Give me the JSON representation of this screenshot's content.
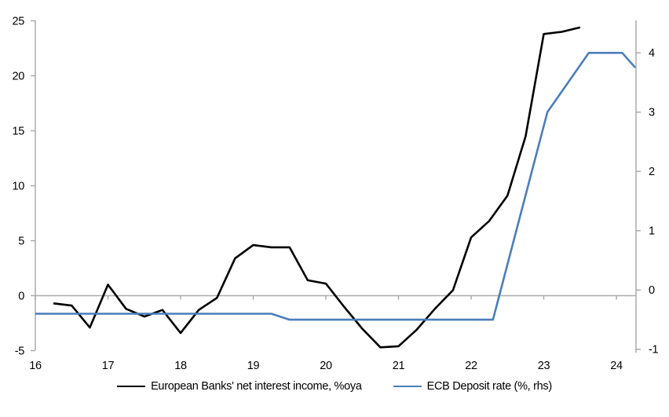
{
  "chart_data": {
    "type": "line",
    "title": "",
    "x_axis": {
      "ticks": [
        16,
        17,
        18,
        19,
        20,
        21,
        22,
        23,
        24
      ],
      "range": [
        16,
        24.27
      ],
      "label": ""
    },
    "left_axis": {
      "ticks": [
        -5,
        0,
        5,
        10,
        15,
        20,
        25
      ],
      "range": [
        -5,
        25
      ],
      "label": ""
    },
    "right_axis": {
      "ticks": [
        -1,
        0,
        1,
        2,
        3,
        4
      ],
      "range": [
        -1.07,
        4.55
      ],
      "label": ""
    },
    "grid": "zero-line-only",
    "legend_position": "bottom",
    "series": [
      {
        "name": "European Banks' net interest income, %oya",
        "color": "#000000",
        "axis": "left",
        "points": [
          [
            16.25,
            -0.7
          ],
          [
            16.5,
            -0.9
          ],
          [
            16.75,
            -2.9
          ],
          [
            17.0,
            1.0
          ],
          [
            17.25,
            -1.2
          ],
          [
            17.5,
            -1.9
          ],
          [
            17.75,
            -1.3
          ],
          [
            18.0,
            -3.4
          ],
          [
            18.25,
            -1.3
          ],
          [
            18.5,
            -0.2
          ],
          [
            18.75,
            3.4
          ],
          [
            19.0,
            4.6
          ],
          [
            19.25,
            4.4
          ],
          [
            19.5,
            4.4
          ],
          [
            19.75,
            1.4
          ],
          [
            20.0,
            1.1
          ],
          [
            20.25,
            -1.0
          ],
          [
            20.5,
            -3.0
          ],
          [
            20.75,
            -4.7
          ],
          [
            21.0,
            -4.6
          ],
          [
            21.25,
            -3.1
          ],
          [
            21.5,
            -1.2
          ],
          [
            21.75,
            0.5
          ],
          [
            22.0,
            5.3
          ],
          [
            22.25,
            6.8
          ],
          [
            22.5,
            9.1
          ],
          [
            22.75,
            14.5
          ],
          [
            23.0,
            23.8
          ],
          [
            23.25,
            24.0
          ],
          [
            23.5,
            24.4
          ]
        ]
      },
      {
        "name": "ECB Deposit rate (%, rhs)",
        "color": "#4A7EBB",
        "axis": "right",
        "points": [
          [
            16.0,
            -0.4
          ],
          [
            19.25,
            -0.4
          ],
          [
            19.5,
            -0.5
          ],
          [
            22.3,
            -0.5
          ],
          [
            23.05,
            3.0
          ],
          [
            23.62,
            4.0
          ],
          [
            24.08,
            4.0
          ],
          [
            24.26,
            3.75
          ]
        ]
      }
    ]
  },
  "legend": {
    "items": [
      {
        "label": "European Banks' net interest income, %oya",
        "color": "#000000"
      },
      {
        "label": "ECB Deposit rate (%, rhs)",
        "color": "#4A7EBB"
      }
    ]
  },
  "colors": {
    "axis": "#A6A6A6",
    "zero_line": "#ACACAC",
    "text": "#000000",
    "background": "#FFFFFF",
    "series_black": "#000000",
    "series_blue": "#4A7EBB"
  }
}
